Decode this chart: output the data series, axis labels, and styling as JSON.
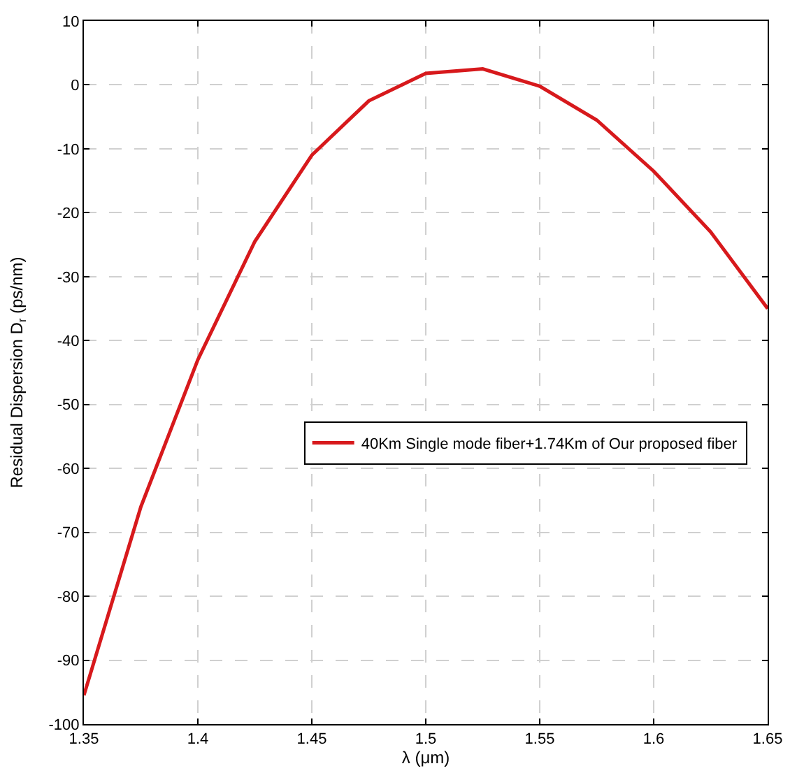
{
  "chart_data": {
    "type": "line",
    "xlabel": "λ (μm)",
    "ylabel": "Residual Dispersion D$_{r}$ (ps/nm)",
    "x": [
      1.35,
      1.375,
      1.4,
      1.425,
      1.45,
      1.475,
      1.5,
      1.525,
      1.55,
      1.575,
      1.6,
      1.625,
      1.65
    ],
    "series": [
      {
        "name": "40Km Single mode fiber+1.74Km of Our proposed fiber",
        "color": "#d7191c",
        "values": [
          -95.5,
          -66,
          -43,
          -24.5,
          -11,
          -2.5,
          1.8,
          2.5,
          -0.2,
          -5.5,
          -13.5,
          -23,
          -35
        ]
      }
    ],
    "xlim": [
      1.35,
      1.65
    ],
    "xticks": [
      1.35,
      1.4,
      1.45,
      1.5,
      1.55,
      1.6,
      1.65
    ],
    "ylim": [
      -100,
      10
    ],
    "yticks": [
      -100,
      -90,
      -80,
      -70,
      -60,
      -50,
      -40,
      -30,
      -20,
      -10,
      0,
      10
    ],
    "grid": true,
    "legend": "right",
    "marker": "none",
    "line_style": "solid"
  }
}
